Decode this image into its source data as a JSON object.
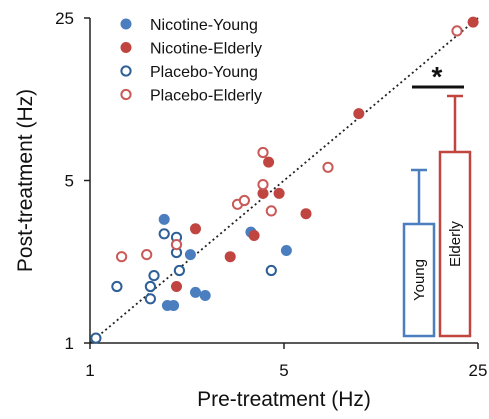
{
  "chart_data": {
    "type": "scatter",
    "title": "",
    "xlabel": "Pre-treatment (Hz)",
    "ylabel": "Post-treatment (Hz)",
    "xscale": "log",
    "yscale": "log",
    "xlim": [
      1,
      25
    ],
    "ylim": [
      1,
      25
    ],
    "xticks": [
      1,
      5,
      25
    ],
    "yticks": [
      1,
      5,
      25
    ],
    "xtick_labels": [
      "1",
      "5",
      "25"
    ],
    "ytick_labels": [
      "1",
      "5",
      "25"
    ],
    "identity_line": true,
    "grid": false,
    "legend_position": "top-left",
    "series": [
      {
        "name": "Nicotine-Young",
        "color": "#4a7ebf",
        "marker": "filled-circle",
        "points": [
          [
            1.85,
            3.4
          ],
          [
            1.9,
            1.45
          ],
          [
            2.0,
            1.45
          ],
          [
            2.3,
            2.4
          ],
          [
            2.4,
            1.65
          ],
          [
            2.6,
            1.6
          ],
          [
            3.8,
            3.0
          ],
          [
            5.1,
            2.5
          ]
        ]
      },
      {
        "name": "Nicotine-Elderly",
        "color": "#c0443f",
        "marker": "filled-circle",
        "points": [
          [
            2.05,
            1.75
          ],
          [
            2.4,
            3.1
          ],
          [
            3.2,
            2.35
          ],
          [
            3.9,
            2.9
          ],
          [
            4.2,
            4.4
          ],
          [
            4.4,
            6.0
          ],
          [
            4.8,
            4.4
          ],
          [
            6.0,
            3.6
          ],
          [
            9.3,
            9.7
          ],
          [
            24.0,
            24.0
          ]
        ]
      },
      {
        "name": "Placebo-Young",
        "color": "#2e5f97",
        "marker": "open-circle",
        "points": [
          [
            1.05,
            1.05
          ],
          [
            1.25,
            1.75
          ],
          [
            1.65,
            1.55
          ],
          [
            1.65,
            1.75
          ],
          [
            1.7,
            1.95
          ],
          [
            1.85,
            2.95
          ],
          [
            2.05,
            2.85
          ],
          [
            2.05,
            2.45
          ],
          [
            2.1,
            2.05
          ],
          [
            4.5,
            2.05
          ]
        ]
      },
      {
        "name": "Placebo-Elderly",
        "color": "#c95a58",
        "marker": "open-circle",
        "points": [
          [
            1.3,
            2.35
          ],
          [
            1.6,
            2.4
          ],
          [
            2.05,
            2.65
          ],
          [
            3.4,
            3.95
          ],
          [
            3.6,
            4.1
          ],
          [
            4.2,
            4.8
          ],
          [
            4.2,
            6.6
          ],
          [
            4.5,
            3.7
          ],
          [
            7.2,
            5.7
          ],
          [
            21.0,
            22.0
          ]
        ]
      }
    ],
    "inset": {
      "type": "bar",
      "categories": [
        "Young",
        "Elderly"
      ],
      "values": [
        2.8,
        4.6
      ],
      "errors": [
        1.35,
        1.4
      ],
      "colors": [
        "#4a7ebf",
        "#c0443f"
      ],
      "significance": "*"
    }
  }
}
